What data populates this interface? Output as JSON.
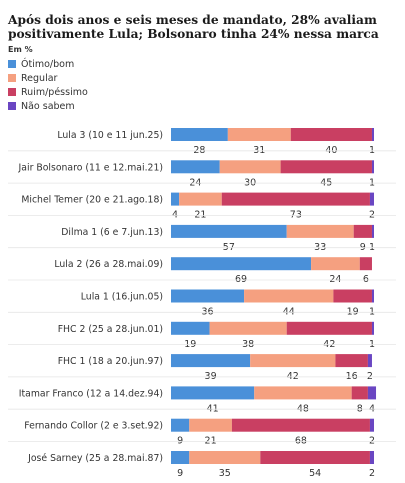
{
  "title": "Após dois anos e seis meses de mandato, 28% avaliam positivamente Lula; Bolsonaro tinha 24% nessa marca",
  "unit": "Em %",
  "colors": {
    "otimo_bom": "#4a90d9",
    "regular": "#f5a080",
    "ruim_pessimo": "#c93f62",
    "nao_sabem": "#6a46c2"
  },
  "chart_data": {
    "type": "bar",
    "orientation": "horizontal",
    "stacked": true,
    "categories": [
      "Lula 3 (10 e 11 jun.25)",
      "Jair Bolsonaro (11 e 12.mai.21)",
      "Michel Temer (20 e 21.ago.18)",
      "Dilma 1 (6 e 7.jun.13)",
      "Lula 2 (26 a 28.mai.09)",
      "Lula 1 (16.jun.05)",
      "FHC 2 (25 a 28.jun.01)",
      "FHC 1 (18 a 20.jun.97)",
      "Itamar Franco (12 a 14.dez.94)",
      "Fernando Collor (2 e 3.set.92)",
      "José Sarney (25 a 28.mai.87)"
    ],
    "series": [
      {
        "name": "Ótimo/bom",
        "values": [
          28,
          24,
          4,
          57,
          69,
          36,
          19,
          39,
          41,
          9,
          9
        ]
      },
      {
        "name": "Regular",
        "values": [
          31,
          30,
          21,
          33,
          24,
          44,
          38,
          42,
          48,
          21,
          35
        ]
      },
      {
        "name": "Ruim/péssimo",
        "values": [
          40,
          45,
          73,
          9,
          6,
          19,
          42,
          16,
          8,
          68,
          54
        ]
      },
      {
        "name": "Não sabem",
        "values": [
          1,
          1,
          2,
          1,
          null,
          1,
          1,
          2,
          4,
          2,
          2
        ]
      }
    ],
    "xlim": [
      0,
      100
    ],
    "legend_position": "top-left"
  }
}
